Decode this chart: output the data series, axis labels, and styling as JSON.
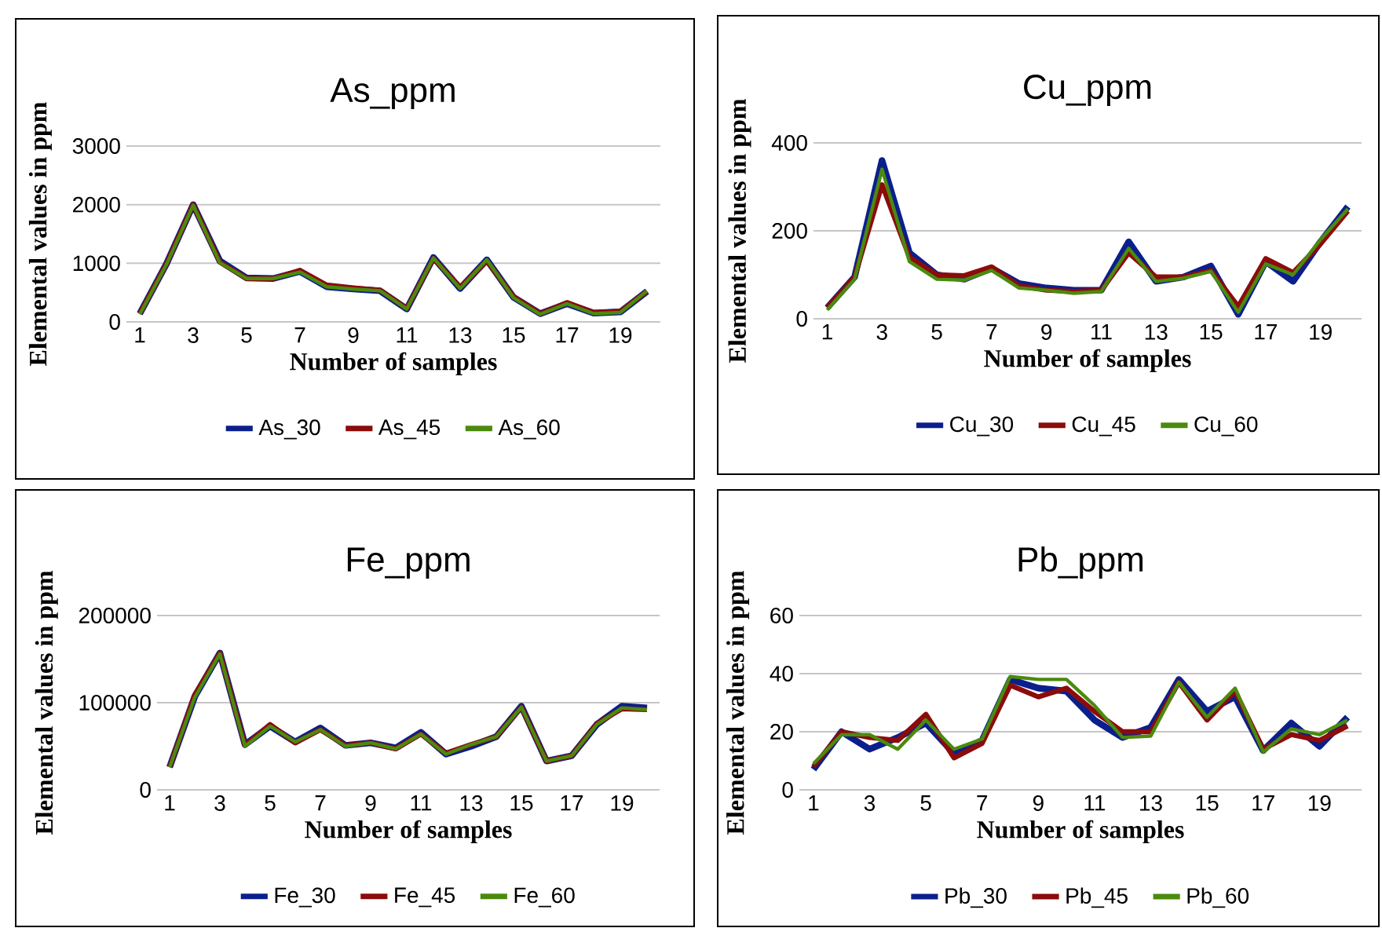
{
  "chart_data": [
    {
      "type": "line",
      "title": "As_ppm",
      "xlabel": "Number of samples",
      "ylabel": "Elemental values in ppm",
      "categories": [
        "1",
        null,
        "3",
        null,
        "5",
        null,
        "7",
        null,
        "9",
        null,
        "11",
        null,
        "13",
        null,
        "15",
        null,
        "17",
        null,
        "19",
        null
      ],
      "ylim": [
        0,
        3000
      ],
      "yticks": [
        0,
        1000,
        2000,
        3000
      ],
      "grid": "y",
      "legend": "bottom",
      "line_style": "solid",
      "marker": "none",
      "series": [
        {
          "name": "As_30",
          "color": "#0b1f8c",
          "values": [
            140,
            990,
            2000,
            1040,
            750,
            740,
            860,
            600,
            560,
            530,
            220,
            1100,
            570,
            1060,
            420,
            140,
            310,
            150,
            170,
            520
          ]
        },
        {
          "name": "As_45",
          "color": "#8c0b0b",
          "values": [
            140,
            990,
            2000,
            1020,
            740,
            740,
            880,
            630,
            580,
            540,
            230,
            1080,
            590,
            1040,
            430,
            140,
            330,
            160,
            180,
            520
          ]
        },
        {
          "name": "As_60",
          "color": "#4b8a0e",
          "values": [
            130,
            980,
            1990,
            1010,
            740,
            740,
            850,
            600,
            560,
            530,
            220,
            1090,
            570,
            1060,
            410,
            130,
            310,
            140,
            160,
            530
          ]
        }
      ]
    },
    {
      "type": "line",
      "title": "Cu_ppm",
      "xlabel": "Number of samples",
      "ylabel": "Elemental values in ppm",
      "categories": [
        "1",
        null,
        "3",
        null,
        "5",
        null,
        "7",
        null,
        "9",
        null,
        "11",
        null,
        "13",
        null,
        "15",
        null,
        "17",
        null,
        "19",
        null
      ],
      "ylim": [
        0,
        400
      ],
      "yticks": [
        0,
        200,
        400
      ],
      "grid": "y",
      "legend": "bottom",
      "line_style": "solid",
      "marker": "none",
      "series": [
        {
          "name": "Cu_30",
          "color": "#0b1f8c",
          "values": [
            25,
            95,
            360,
            150,
            100,
            90,
            115,
            80,
            70,
            65,
            65,
            175,
            85,
            95,
            120,
            10,
            130,
            85,
            175,
            255
          ]
        },
        {
          "name": "Cu_45",
          "color": "#8c0b0b",
          "values": [
            25,
            95,
            305,
            140,
            100,
            98,
            118,
            75,
            65,
            62,
            65,
            150,
            95,
            95,
            110,
            28,
            137,
            105,
            170,
            245
          ]
        },
        {
          "name": "Cu_60",
          "color": "#4b8a0e",
          "values": [
            20,
            90,
            340,
            130,
            90,
            88,
            110,
            70,
            65,
            58,
            62,
            160,
            85,
            92,
            108,
            15,
            125,
            100,
            180,
            250
          ]
        }
      ]
    },
    {
      "type": "line",
      "title": "Fe_ppm",
      "xlabel": "Number of samples",
      "ylabel": "Elemental values in ppm",
      "categories": [
        "1",
        null,
        "3",
        null,
        "5",
        null,
        "7",
        null,
        "9",
        null,
        "11",
        null,
        "13",
        null,
        "15",
        null,
        "17",
        null,
        "19",
        null
      ],
      "ylim": [
        0,
        200000
      ],
      "yticks": [
        0,
        100000,
        200000
      ],
      "grid": "y",
      "legend": "bottom",
      "line_style": "solid",
      "marker": "none",
      "series": [
        {
          "name": "Fe_30",
          "color": "#0b1f8c",
          "values": [
            26000,
            107000,
            157000,
            52000,
            73000,
            55000,
            71000,
            51000,
            54000,
            48000,
            66000,
            41000,
            50000,
            61000,
            96000,
            33000,
            39000,
            75000,
            96000,
            94000
          ]
        },
        {
          "name": "Fe_45",
          "color": "#8c0b0b",
          "values": [
            26000,
            109000,
            157000,
            51000,
            75000,
            54000,
            69000,
            51000,
            54000,
            47000,
            64000,
            42000,
            52000,
            61000,
            95000,
            33000,
            39000,
            76000,
            93000,
            92000
          ]
        },
        {
          "name": "Fe_60",
          "color": "#4b8a0e",
          "values": [
            26000,
            106000,
            156000,
            50000,
            73000,
            55000,
            69000,
            50000,
            54000,
            47000,
            64000,
            41000,
            52000,
            61000,
            95000,
            33000,
            39000,
            75000,
            94000,
            92000
          ]
        }
      ]
    },
    {
      "type": "line",
      "title": "Pb_ppm",
      "xlabel": "Number of samples",
      "ylabel": "Elemental values in ppm",
      "categories": [
        "1",
        null,
        "3",
        null,
        "5",
        null,
        "7",
        null,
        "9",
        null,
        "11",
        null,
        "13",
        null,
        "15",
        null,
        "17",
        null,
        "19",
        null
      ],
      "ylim": [
        0,
        60
      ],
      "yticks": [
        0,
        20,
        40,
        60
      ],
      "grid": "y",
      "legend": "bottom",
      "line_style": "solid",
      "marker": "none",
      "series": [
        {
          "name": "Pb_30",
          "color": "#0b1f8c",
          "values": [
            7,
            20,
            14,
            18,
            23,
            12.5,
            17,
            38,
            35,
            34,
            24,
            18,
            21.5,
            38,
            27,
            32,
            13.5,
            23,
            15,
            25
          ]
        },
        {
          "name": "Pb_45",
          "color": "#8c0b0b",
          "values": [
            8,
            20,
            18,
            17,
            26,
            11,
            16,
            36,
            32,
            35,
            27,
            20,
            20,
            37,
            24,
            34,
            14,
            19,
            17,
            22
          ]
        },
        {
          "name": "Pb_60",
          "color": "#4b8a0e",
          "values": [
            9,
            19,
            19,
            14,
            24,
            14,
            17.5,
            39,
            38,
            38,
            29,
            18,
            18.5,
            37,
            25,
            35,
            13,
            21,
            19,
            24
          ]
        }
      ]
    }
  ]
}
